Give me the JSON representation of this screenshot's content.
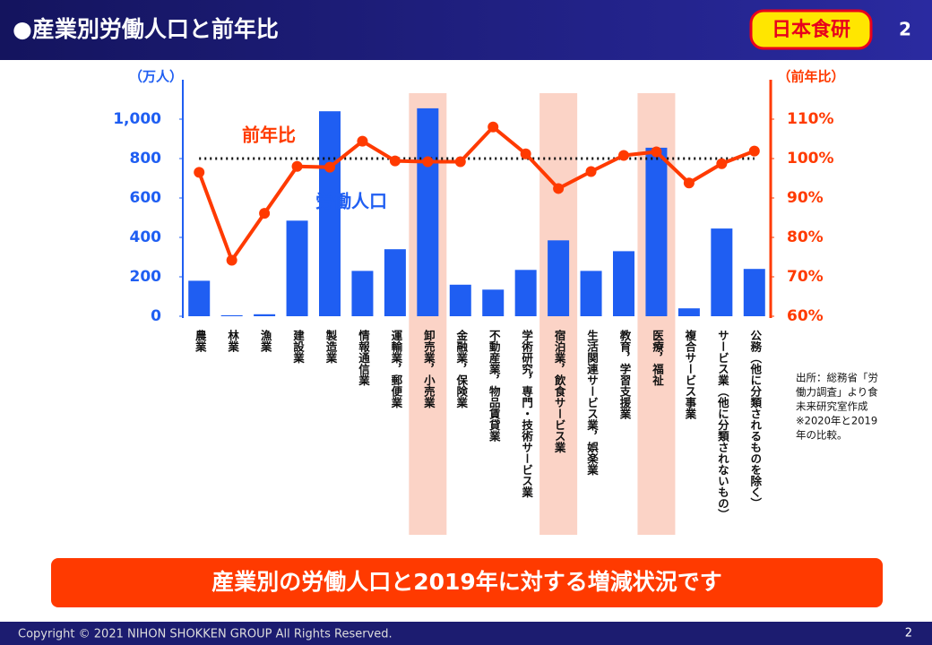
{
  "header": {
    "title": "●産業別労働人口と前年比",
    "logo": "日本食研",
    "page": "2"
  },
  "chart_data": {
    "type": "bar-line",
    "y_label": "（万人）",
    "y2_label": "（前年比）",
    "categories": [
      "農業",
      "林業",
      "漁業",
      "建設業",
      "製造業",
      "情報通信業",
      "運輸業，郵便業",
      "卸売業，小売業",
      "金融業，保険業",
      "不動産業，物品賃貸業",
      "学術研究，専門・技術サービス業",
      "宿泊業，飲食サービス業",
      "生活関連サービス業，娯楽業",
      "教育，学習支援業",
      "医療，福祉",
      "複合サービス事業",
      "サービス業（他に分類されないもの）",
      "公務（他に分類されるものを除く）"
    ],
    "series": [
      {
        "name": "労働人口",
        "type": "bar",
        "color": "#1f5ef2",
        "values": [
          180,
          5,
          10,
          485,
          1040,
          230,
          340,
          1055,
          160,
          135,
          235,
          385,
          230,
          330,
          855,
          40,
          445,
          240
        ]
      },
      {
        "name": "前年比",
        "type": "line",
        "axis": "y2",
        "color": "#ff3a00",
        "values": [
          96.5,
          74.2,
          86.1,
          98,
          97.8,
          104.4,
          99.4,
          99.2,
          99.2,
          108,
          101.2,
          92.4,
          96.7,
          100.8,
          101.7,
          93.8,
          98.7,
          101.9
        ]
      }
    ],
    "ylim": [
      0,
      1200
    ],
    "yticks": [
      0,
      200,
      400,
      600,
      800,
      {
        "value": 1000,
        "label": "1,000"
      }
    ],
    "y2lim": [
      60,
      120
    ],
    "y2ticks": [
      {
        "value": 60,
        "label": "60%"
      },
      {
        "value": 70,
        "label": "70%"
      },
      {
        "value": 80,
        "label": "80%"
      },
      {
        "value": 90,
        "label": "90%"
      },
      {
        "value": 100,
        "label": "100%"
      },
      {
        "value": 110,
        "label": "110%"
      }
    ],
    "reference_line": 100,
    "highlight": [
      7,
      11,
      14
    ],
    "highlight_color": "#fbd3c6",
    "note": [
      "出所：総務省「労",
      "働力調査」より食",
      "未来研究室作成",
      "※2020年と2019",
      "年の比較。"
    ]
  },
  "banner": "産業別の労働人口と2019年に対する増減状況です",
  "footer": {
    "copyright": "Copyright © 2021 NIHON SHOKKEN GROUP All Rights Reserved.",
    "page": "2"
  }
}
